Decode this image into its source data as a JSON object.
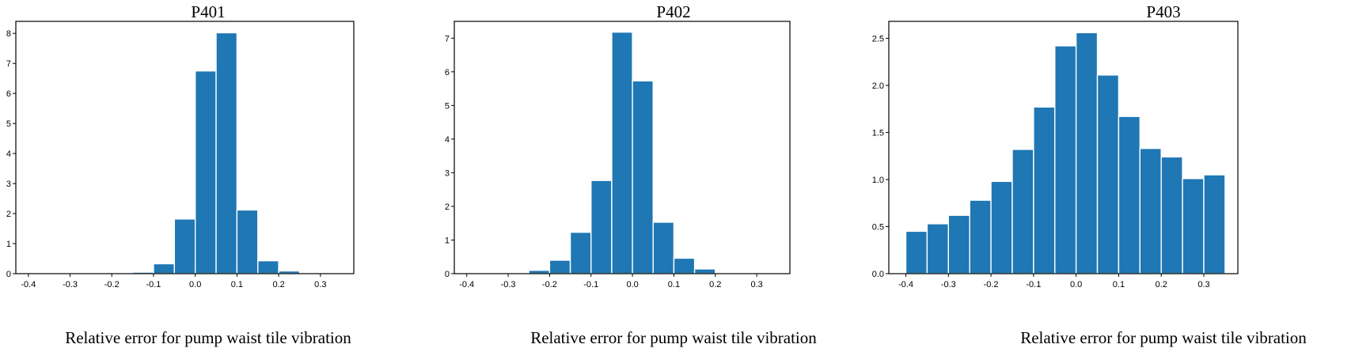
{
  "chart_data": [
    {
      "type": "bar",
      "title": "P401",
      "xlabel": "Relative error for pump waist tile vibration",
      "ylabel": "",
      "bar_color": "#1f77b4",
      "xlim": [
        -0.43,
        0.38
      ],
      "ylim": [
        0,
        8.4
      ],
      "bin_width": 0.05,
      "xticks": [
        -0.4,
        -0.3,
        -0.2,
        -0.1,
        0.0,
        0.1,
        0.2,
        0.3
      ],
      "xtick_labels": [
        "-0.4",
        "-0.3",
        "-0.2",
        "-0.1",
        "0.0",
        "0.1",
        "0.2",
        "0.3"
      ],
      "yticks": [
        0,
        1,
        2,
        3,
        4,
        5,
        6,
        7,
        8
      ],
      "ytick_labels": [
        "0",
        "1",
        "2",
        "3",
        "4",
        "5",
        "6",
        "7",
        "8"
      ],
      "bins": [
        {
          "start": -0.2,
          "value": 0.02
        },
        {
          "start": -0.15,
          "value": 0.05
        },
        {
          "start": -0.1,
          "value": 0.33
        },
        {
          "start": -0.05,
          "value": 1.82
        },
        {
          "start": -0.0,
          "value": 6.75
        },
        {
          "start": 0.05,
          "value": 8.02
        },
        {
          "start": 0.1,
          "value": 2.12
        },
        {
          "start": 0.15,
          "value": 0.43
        },
        {
          "start": 0.2,
          "value": 0.09
        },
        {
          "start": 0.25,
          "value": 0.01
        }
      ]
    },
    {
      "type": "bar",
      "title": "P402",
      "xlabel": "Relative error for pump waist tile vibration",
      "ylabel": "",
      "bar_color": "#1f77b4",
      "xlim": [
        -0.43,
        0.38
      ],
      "ylim": [
        0,
        7.5
      ],
      "bin_width": 0.05,
      "xticks": [
        -0.4,
        -0.3,
        -0.2,
        -0.1,
        0.0,
        0.1,
        0.2,
        0.3
      ],
      "xtick_labels": [
        "-0.4",
        "-0.3",
        "-0.2",
        "-0.1",
        "0.0",
        "0.1",
        "0.2",
        "0.3"
      ],
      "yticks": [
        0,
        1,
        2,
        3,
        4,
        5,
        6,
        7
      ],
      "ytick_labels": [
        "0",
        "1",
        "2",
        "3",
        "4",
        "5",
        "6",
        "7"
      ],
      "bins": [
        {
          "start": -0.3,
          "value": 0.02
        },
        {
          "start": -0.25,
          "value": 0.1
        },
        {
          "start": -0.2,
          "value": 0.4
        },
        {
          "start": -0.15,
          "value": 1.23
        },
        {
          "start": -0.1,
          "value": 2.77
        },
        {
          "start": -0.05,
          "value": 7.18
        },
        {
          "start": 0.0,
          "value": 5.73
        },
        {
          "start": 0.05,
          "value": 1.53
        },
        {
          "start": 0.1,
          "value": 0.46
        },
        {
          "start": 0.15,
          "value": 0.14
        },
        {
          "start": 0.2,
          "value": 0.02
        }
      ]
    },
    {
      "type": "bar",
      "title": "P403",
      "xlabel": "Relative error for pump waist tile vibration",
      "ylabel": "",
      "bar_color": "#1f77b4",
      "xlim": [
        -0.44,
        0.38
      ],
      "ylim": [
        0,
        2.68
      ],
      "bin_width": 0.05,
      "xticks": [
        -0.4,
        -0.3,
        -0.2,
        -0.1,
        0.0,
        0.1,
        0.2,
        0.3
      ],
      "xtick_labels": [
        "-0.4",
        "-0.3",
        "-0.2",
        "-0.1",
        "0.0",
        "0.1",
        "0.2",
        "0.3"
      ],
      "yticks": [
        0,
        0.5,
        1.0,
        1.5,
        2.0,
        2.5
      ],
      "ytick_labels": [
        "0.0",
        "0.5",
        "1.0",
        "1.5",
        "2.0",
        "2.5"
      ],
      "bins": [
        {
          "start": -0.4,
          "value": 0.45
        },
        {
          "start": -0.35,
          "value": 0.53
        },
        {
          "start": -0.3,
          "value": 0.62
        },
        {
          "start": -0.25,
          "value": 0.78
        },
        {
          "start": -0.2,
          "value": 0.98
        },
        {
          "start": -0.15,
          "value": 1.32
        },
        {
          "start": -0.1,
          "value": 1.77
        },
        {
          "start": -0.05,
          "value": 2.42
        },
        {
          "start": 0.0,
          "value": 2.56
        },
        {
          "start": 0.05,
          "value": 2.11
        },
        {
          "start": 0.1,
          "value": 1.67
        },
        {
          "start": 0.15,
          "value": 1.33
        },
        {
          "start": 0.2,
          "value": 1.24
        },
        {
          "start": 0.25,
          "value": 1.01
        },
        {
          "start": 0.3,
          "value": 1.05
        }
      ]
    }
  ]
}
